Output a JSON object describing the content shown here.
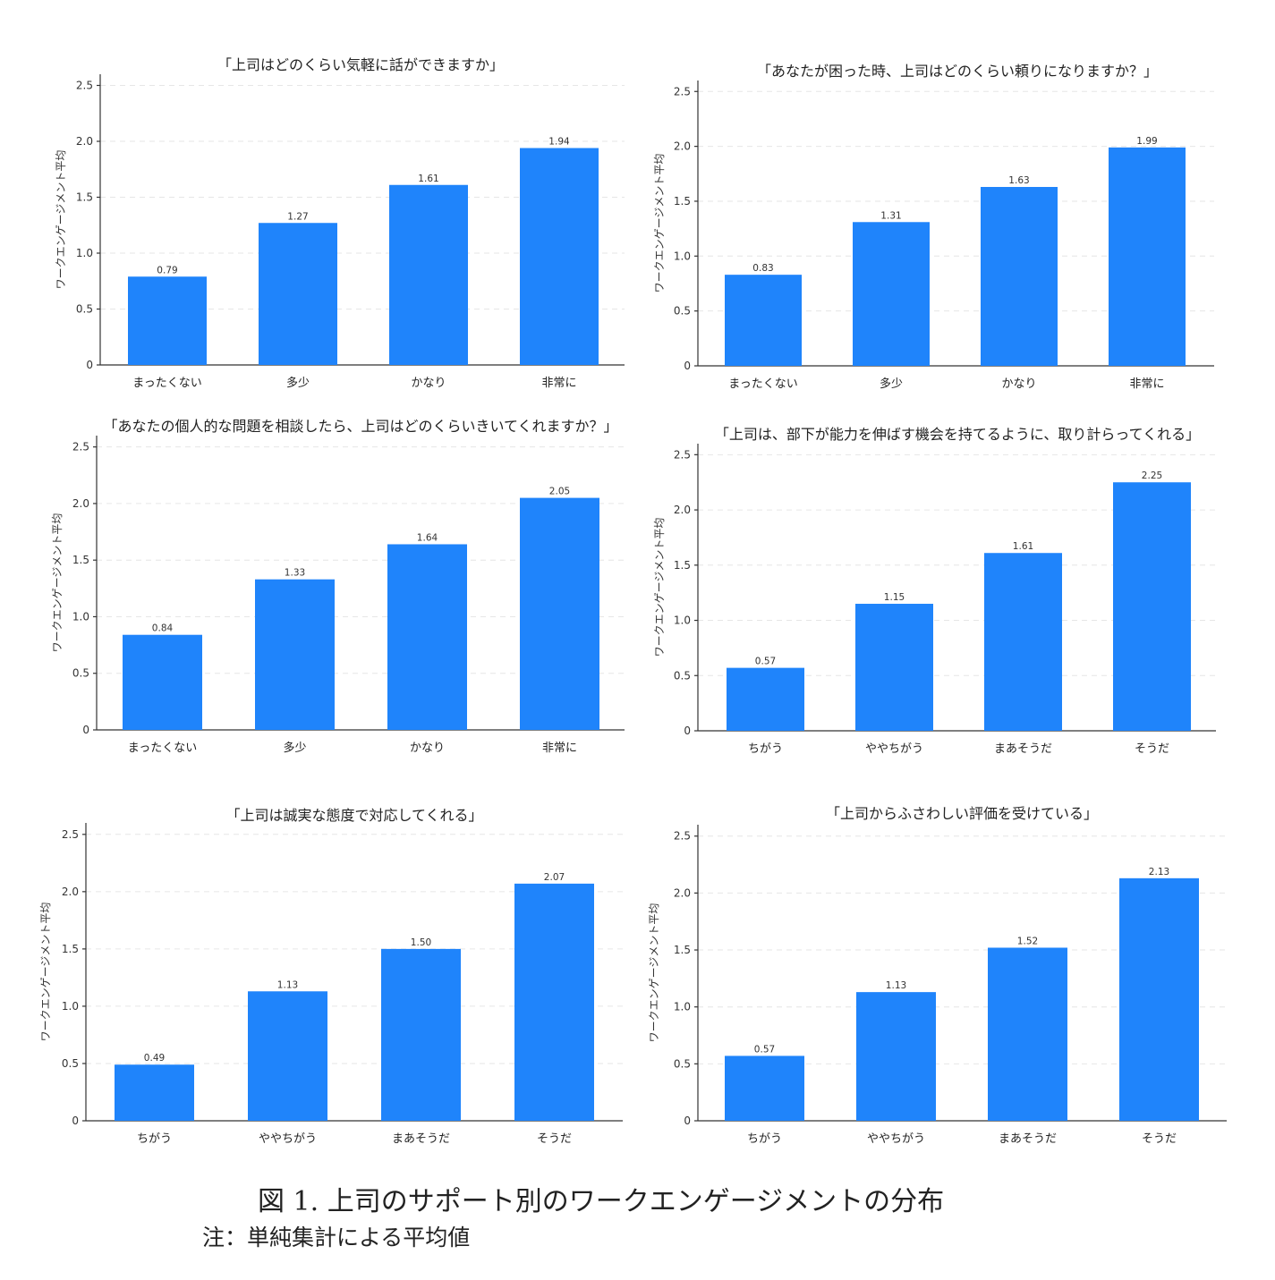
{
  "chart_data": [
    {
      "type": "bar",
      "title": "「上司はどのくらい気軽に話ができますか」",
      "ylabel": "ワークエンゲージメント平均",
      "categories": [
        "まったくない",
        "多少",
        "かなり",
        "非常に"
      ],
      "values": [
        0.79,
        1.27,
        1.61,
        1.94
      ],
      "value_labels": [
        "0.79",
        "1.27",
        "1.61",
        "1.94"
      ],
      "yticks": [
        "0",
        "0.5",
        "1.0",
        "1.5",
        "2.0",
        "2.5"
      ],
      "ylim": [
        0,
        2.6
      ],
      "grid": true
    },
    {
      "type": "bar",
      "title": "「あなたが困った時、上司はどのくらい頼りになりますか？」",
      "ylabel": "ワークエンゲージメント平均",
      "categories": [
        "まったくない",
        "多少",
        "かなり",
        "非常に"
      ],
      "values": [
        0.83,
        1.31,
        1.63,
        1.99
      ],
      "value_labels": [
        "0.83",
        "1.31",
        "1.63",
        "1.99"
      ],
      "yticks": [
        "0",
        "0.5",
        "1.0",
        "1.5",
        "2.0",
        "2.5"
      ],
      "ylim": [
        0,
        2.6
      ],
      "grid": true
    },
    {
      "type": "bar",
      "title": "「あなたの個人的な問題を相談したら、上司はどのくらいきいてくれますか？」",
      "ylabel": "ワークエンゲージメント平均",
      "categories": [
        "まったくない",
        "多少",
        "かなり",
        "非常に"
      ],
      "values": [
        0.84,
        1.33,
        1.64,
        2.05
      ],
      "value_labels": [
        "0.84",
        "1.33",
        "1.64",
        "2.05"
      ],
      "yticks": [
        "0",
        "0.5",
        "1.0",
        "1.5",
        "2.0",
        "2.5"
      ],
      "ylim": [
        0,
        2.6
      ],
      "grid": true
    },
    {
      "type": "bar",
      "title": "「上司は、部下が能力を伸ばす機会を持てるように、取り計らってくれる」",
      "ylabel": "ワークエンゲージメント平均",
      "categories": [
        "ちがう",
        "ややちがう",
        "まあそうだ",
        "そうだ"
      ],
      "values": [
        0.57,
        1.15,
        1.61,
        2.25
      ],
      "value_labels": [
        "0.57",
        "1.15",
        "1.61",
        "2.25"
      ],
      "yticks": [
        "0",
        "0.5",
        "1.0",
        "1.5",
        "2.0",
        "2.5"
      ],
      "ylim": [
        0,
        2.6
      ],
      "grid": true
    },
    {
      "type": "bar",
      "title": "「上司は誠実な態度で対応してくれる」",
      "ylabel": "ワークエンゲージメント平均",
      "categories": [
        "ちがう",
        "ややちがう",
        "まあそうだ",
        "そうだ"
      ],
      "values": [
        0.49,
        1.13,
        1.5,
        2.07
      ],
      "value_labels": [
        "0.49",
        "1.13",
        "1.50",
        "2.07"
      ],
      "yticks": [
        "0",
        "0.5",
        "1.0",
        "1.5",
        "2.0",
        "2.5"
      ],
      "ylim": [
        0,
        2.6
      ],
      "grid": true
    },
    {
      "type": "bar",
      "title": "「上司からふさわしい評価を受けている」",
      "ylabel": "ワークエンゲージメント平均",
      "categories": [
        "ちがう",
        "ややちがう",
        "まあそうだ",
        "そうだ"
      ],
      "values": [
        0.57,
        1.13,
        1.52,
        2.13
      ],
      "value_labels": [
        "0.57",
        "1.13",
        "1.52",
        "2.13"
      ],
      "yticks": [
        "0",
        "0.5",
        "1.0",
        "1.5",
        "2.0",
        "2.5"
      ],
      "ylim": [
        0,
        2.6
      ],
      "grid": true
    }
  ],
  "bar_color": "#1f84fb",
  "figure": {
    "caption": "図 1.  上司のサポート別のワークエンゲージメントの分布",
    "note": "注：単純集計による平均値"
  }
}
